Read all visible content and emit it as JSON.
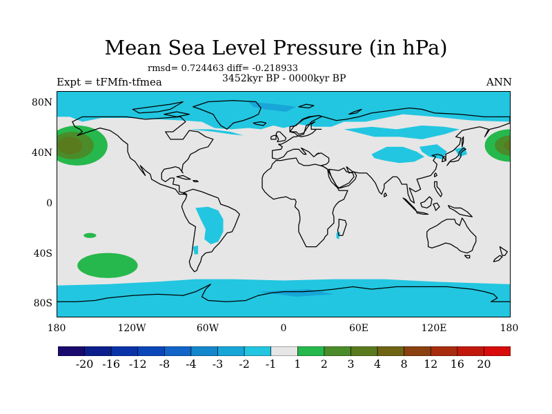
{
  "title": "Mean Sea Level Pressure (in hPa)",
  "stats": "rmsd= 0.724463 diff= -0.218933",
  "experiment": "Expt = tFMfn-tfmea",
  "period": "3452kyr BP - 0000kyr BP",
  "season": "ANN",
  "map": {
    "projection": "cylindrical equidistant",
    "lat_range": [
      -90,
      90
    ],
    "lon_range": [
      -180,
      180
    ],
    "lat_ticks": [
      {
        "value": 80,
        "label": "80N"
      },
      {
        "value": 40,
        "label": "40N"
      },
      {
        "value": 0,
        "label": "0"
      },
      {
        "value": -40,
        "label": "40S"
      },
      {
        "value": -80,
        "label": "80S"
      }
    ],
    "lon_ticks": [
      {
        "value": -180,
        "label": "180"
      },
      {
        "value": -120,
        "label": "120W"
      },
      {
        "value": -60,
        "label": "60W"
      },
      {
        "value": 0,
        "label": "0"
      },
      {
        "value": 60,
        "label": "60E"
      },
      {
        "value": 120,
        "label": "120E"
      },
      {
        "value": 180,
        "label": "180"
      }
    ],
    "background_color": "#e6e6e6",
    "coastline_color": "#000000"
  },
  "colorbar": {
    "colors": [
      "#1a0a6e",
      "#0c1f8c",
      "#0a33a8",
      "#0a47b8",
      "#1264c8",
      "#1486cc",
      "#18a6d8",
      "#22c6e0",
      "#e6e6e6",
      "#26b84c",
      "#4a8c2a",
      "#5a7a1e",
      "#6e6414",
      "#8a4010",
      "#a82c0e",
      "#c2180c",
      "#d80c0c"
    ],
    "labels": [
      "-20",
      "-16",
      "-12",
      "-8",
      "-4",
      "-3",
      "-2",
      "-1",
      "1",
      "2",
      "3",
      "4",
      "8",
      "12",
      "16",
      "20"
    ]
  },
  "chart_data": {
    "type": "heatmap",
    "variable": "Mean Sea Level Pressure difference",
    "units": "hPa",
    "levels": [
      -20,
      -16,
      -12,
      -8,
      -4,
      -3,
      -2,
      -1,
      1,
      2,
      3,
      4,
      8,
      12,
      16,
      20
    ],
    "regions": [
      {
        "name": "Arctic / North Atlantic",
        "lon_range": [
          -180,
          180
        ],
        "lat_range": [
          60,
          90
        ],
        "level_range": [
          -2,
          -1
        ],
        "note": "locally -3 to -2 near Greenland/Norway"
      },
      {
        "name": "Central Asia",
        "lon_range": [
          30,
          120
        ],
        "lat_range": [
          30,
          55
        ],
        "level_range": [
          -2,
          -1
        ]
      },
      {
        "name": "South America",
        "lon_range": [
          -70,
          -45
        ],
        "lat_range": [
          -35,
          0
        ],
        "level_range": [
          -2,
          -1
        ]
      },
      {
        "name": "Southern Ocean / Antarctica",
        "lon_range": [
          -180,
          180
        ],
        "lat_range": [
          -90,
          -60
        ],
        "level_range": [
          -2,
          -1
        ],
        "note": "locally -3 to -2"
      },
      {
        "name": "North Pacific High",
        "lon_range": [
          -180,
          -140
        ],
        "lat_range": [
          30,
          65
        ],
        "level_range": [
          2,
          4
        ],
        "note": "core 3 to 4"
      },
      {
        "name": "South Pacific",
        "lon_range": [
          -160,
          -120
        ],
        "lat_range": [
          -55,
          -40
        ],
        "level_range": [
          1,
          2
        ]
      },
      {
        "name": "Western Pacific (date line)",
        "lon_range": [
          160,
          180
        ],
        "lat_range": [
          35,
          55
        ],
        "level_range": [
          2,
          4
        ]
      },
      {
        "name": "Tropical South Pacific",
        "lon_range": [
          -160,
          -150
        ],
        "lat_range": [
          -27,
          -23
        ],
        "level_range": [
          1,
          2
        ]
      }
    ]
  }
}
